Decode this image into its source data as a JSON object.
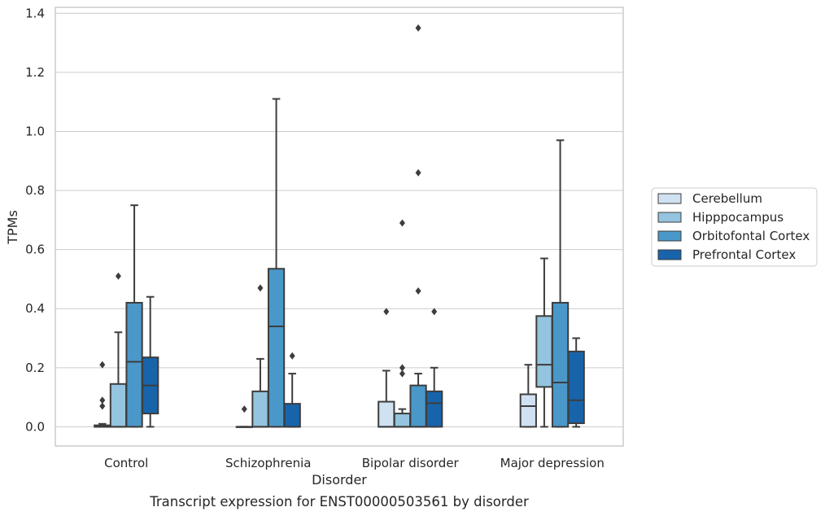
{
  "chart_data": {
    "type": "box",
    "xlabel": "Disorder",
    "ylabel": "TPMs",
    "caption": "Transcript expression for ENST00000503561 by disorder",
    "ylim": [
      -0.065,
      1.42
    ],
    "yticks": [
      "0.0",
      "0.2",
      "0.4",
      "0.6",
      "0.8",
      "1.0",
      "1.2",
      "1.4"
    ],
    "ytick_values": [
      0.0,
      0.2,
      0.4,
      0.6,
      0.8,
      1.0,
      1.2,
      1.4
    ],
    "grid": true,
    "legend_position": "right",
    "categories": [
      "Control",
      "Schizophrenia",
      "Bipolar disorder",
      "Major depression"
    ],
    "series": [
      {
        "name": "Cerebellum",
        "color": "#d0e1f2",
        "boxes": [
          {
            "q1": 0.0,
            "median": 0.0,
            "q3": 0.005,
            "whislo": 0.0,
            "whishi": 0.01,
            "fliers": [
              0.21,
              0.09,
              0.07
            ]
          },
          {
            "q1": 0.0,
            "median": 0.0,
            "q3": 0.0,
            "whislo": 0.0,
            "whishi": 0.0,
            "fliers": [
              0.06
            ]
          },
          {
            "q1": 0.0,
            "median": 0.0,
            "q3": 0.085,
            "whislo": 0.0,
            "whishi": 0.19,
            "fliers": [
              0.39
            ]
          },
          {
            "q1": 0.0,
            "median": 0.07,
            "q3": 0.11,
            "whislo": 0.0,
            "whishi": 0.21,
            "fliers": []
          }
        ]
      },
      {
        "name": "Hipppocampus",
        "color": "#94c4df",
        "boxes": [
          {
            "q1": 0.0,
            "median": 0.0,
            "q3": 0.145,
            "whislo": 0.0,
            "whishi": 0.32,
            "fliers": [
              0.51
            ]
          },
          {
            "q1": 0.0,
            "median": 0.0,
            "q3": 0.12,
            "whislo": 0.0,
            "whishi": 0.23,
            "fliers": [
              0.47
            ]
          },
          {
            "q1": 0.0,
            "median": 0.0,
            "q3": 0.045,
            "whislo": 0.0,
            "whishi": 0.06,
            "fliers": [
              0.69,
              0.2,
              0.18
            ]
          },
          {
            "q1": 0.135,
            "median": 0.21,
            "q3": 0.375,
            "whislo": 0.0,
            "whishi": 0.57,
            "fliers": []
          }
        ]
      },
      {
        "name": "Orbitofontal Cortex",
        "color": "#4a98c9",
        "boxes": [
          {
            "q1": 0.0,
            "median": 0.22,
            "q3": 0.42,
            "whislo": 0.0,
            "whishi": 0.75,
            "fliers": []
          },
          {
            "q1": 0.0,
            "median": 0.34,
            "q3": 0.535,
            "whislo": 0.0,
            "whishi": 1.11,
            "fliers": []
          },
          {
            "q1": 0.0,
            "median": 0.0,
            "q3": 0.14,
            "whislo": 0.0,
            "whishi": 0.18,
            "fliers": [
              1.35,
              0.86,
              0.46
            ]
          },
          {
            "q1": 0.0,
            "median": 0.15,
            "q3": 0.42,
            "whislo": 0.0,
            "whishi": 0.97,
            "fliers": []
          }
        ]
      },
      {
        "name": "Prefrontal Cortex",
        "color": "#1764ab",
        "boxes": [
          {
            "q1": 0.045,
            "median": 0.14,
            "q3": 0.235,
            "whislo": 0.0,
            "whishi": 0.44,
            "fliers": []
          },
          {
            "q1": 0.0,
            "median": 0.0,
            "q3": 0.078,
            "whislo": 0.0,
            "whishi": 0.18,
            "fliers": [
              0.24
            ]
          },
          {
            "q1": 0.0,
            "median": 0.08,
            "q3": 0.12,
            "whislo": 0.0,
            "whishi": 0.2,
            "fliers": [
              0.39
            ]
          },
          {
            "q1": 0.012,
            "median": 0.09,
            "q3": 0.255,
            "whislo": 0.0,
            "whishi": 0.3,
            "fliers": []
          }
        ]
      }
    ]
  }
}
